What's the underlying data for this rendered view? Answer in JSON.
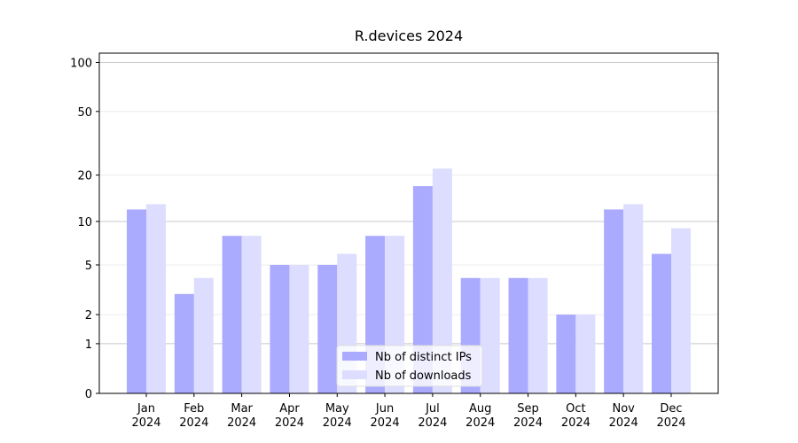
{
  "chart_data": {
    "type": "bar",
    "title": "R.devices 2024",
    "categories": [
      "Jan\n2024",
      "Feb\n2024",
      "Mar\n2024",
      "Apr\n2024",
      "May\n2024",
      "Jun\n2024",
      "Jul\n2024",
      "Aug\n2024",
      "Sep\n2024",
      "Oct\n2024",
      "Nov\n2024",
      "Dec\n2024"
    ],
    "series": [
      {
        "name": "Nb of distinct IPs",
        "color": "#aaaaff",
        "values": [
          12,
          3,
          8,
          5,
          5,
          8,
          17,
          4,
          4,
          2,
          12,
          6
        ]
      },
      {
        "name": "Nb of downloads",
        "color": "#ddddff",
        "values": [
          13,
          4,
          8,
          5,
          6,
          8,
          22,
          4,
          4,
          2,
          13,
          9
        ]
      }
    ],
    "yscale": "log1p",
    "ylim": [
      0,
      114
    ],
    "yticks": [
      0,
      1,
      2,
      5,
      10,
      20,
      50,
      100
    ],
    "grid": true,
    "legend": "lower center"
  }
}
